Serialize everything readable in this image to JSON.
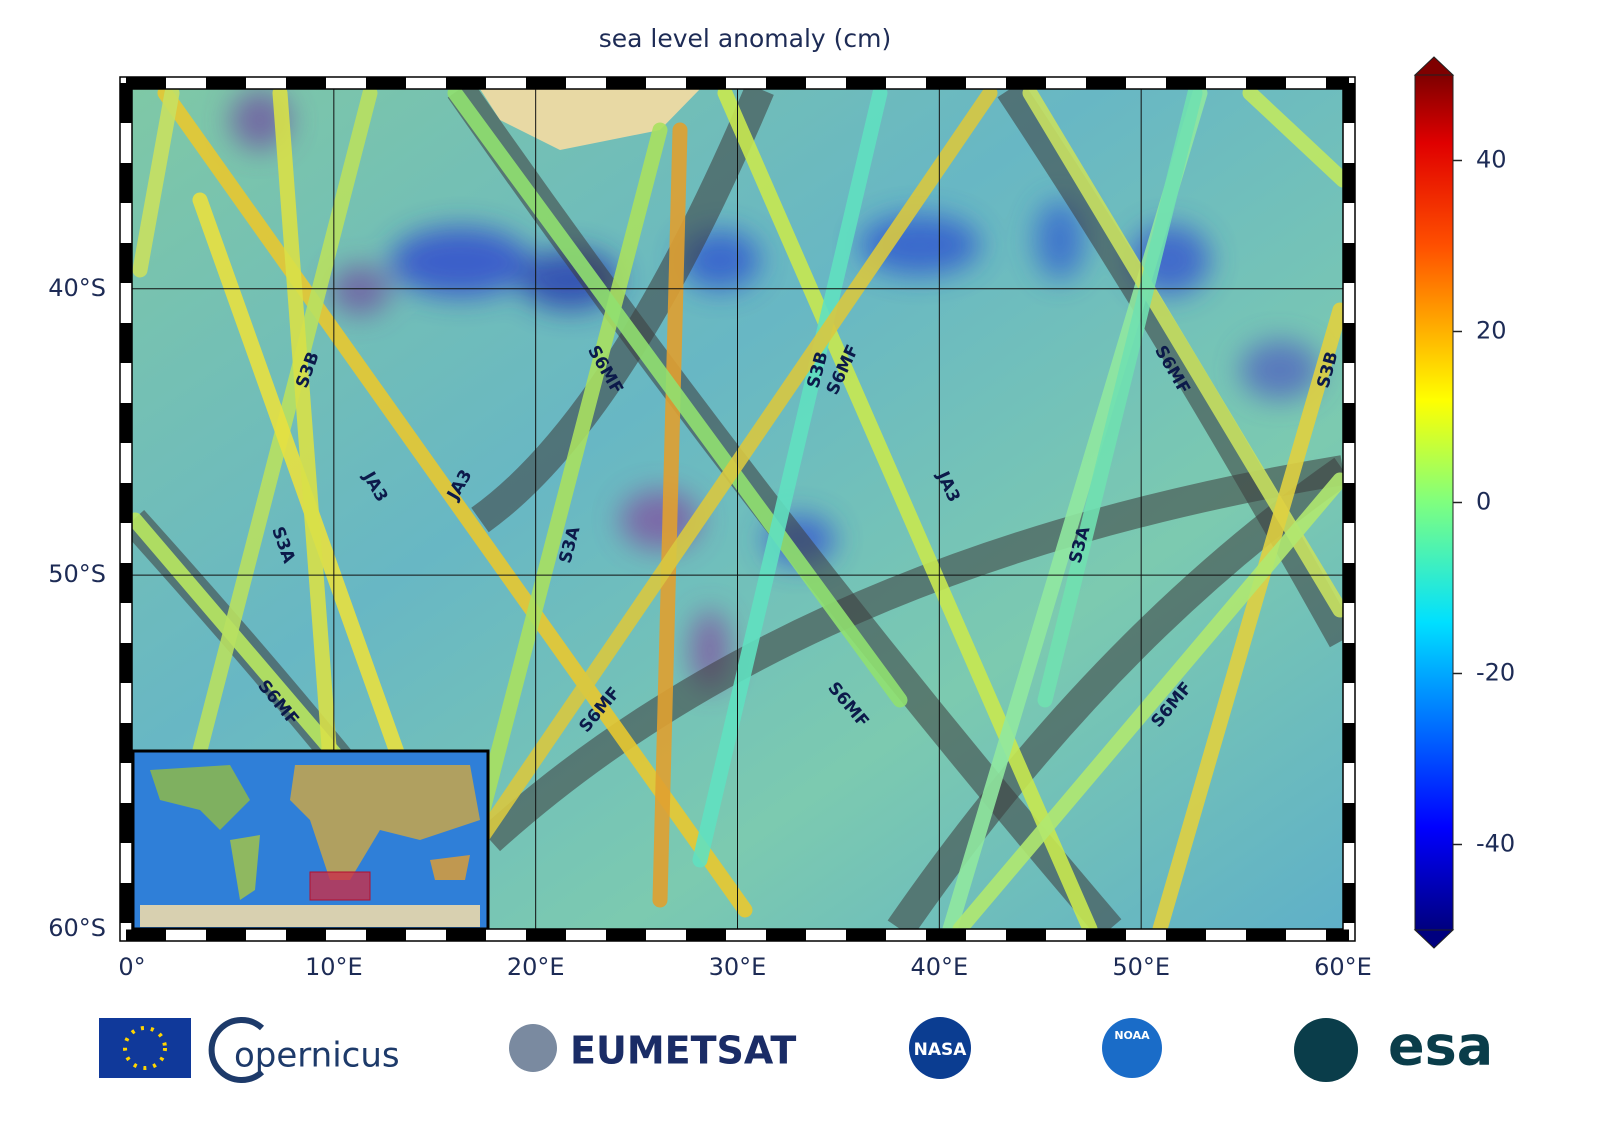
{
  "chart_data": {
    "type": "map",
    "title": "sea level anomaly (cm)",
    "projection": "mercator",
    "xlim": [
      0,
      60
    ],
    "ylim": [
      -60,
      -32
    ],
    "xticks": [
      {
        "value": 0,
        "label": "0°"
      },
      {
        "value": 10,
        "label": "10°E"
      },
      {
        "value": 20,
        "label": "20°E"
      },
      {
        "value": 30,
        "label": "30°E"
      },
      {
        "value": 40,
        "label": "40°E"
      },
      {
        "value": 50,
        "label": "50°E"
      },
      {
        "value": 60,
        "label": "60°E"
      }
    ],
    "yticks": [
      {
        "value": -40,
        "label": "40°S"
      },
      {
        "value": -50,
        "label": "50°S"
      },
      {
        "value": -60,
        "label": "60°S"
      }
    ],
    "grid": true,
    "colorbar": {
      "clim": [
        -50,
        50
      ],
      "ticks": [
        40,
        20,
        0,
        -20,
        -40
      ]
    },
    "track_labels": [
      "S3B",
      "JA3",
      "JA3",
      "S3A",
      "S6MF",
      "S3A",
      "S6MF",
      "S6MF",
      "S3B",
      "S6MF",
      "JA3",
      "S6MF",
      "S3A",
      "S6MF",
      "S6MF",
      "S3B"
    ]
  },
  "logos": {
    "copernicus": "opernicus",
    "eumetsat": "EUMETSAT",
    "nasa": "NASA",
    "noaa": "NOAA",
    "esa": "esa"
  }
}
